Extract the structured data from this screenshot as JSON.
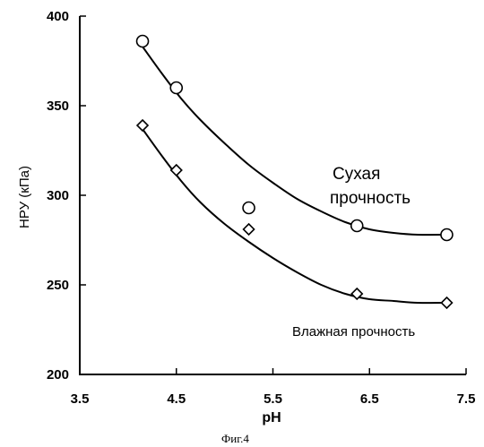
{
  "chart_data": {
    "type": "scatter",
    "title": "",
    "xlabel": "pH",
    "ylabel": "НРУ (кПа)",
    "xlim": [
      3.5,
      7.5
    ],
    "ylim": [
      200,
      400
    ],
    "xticks": [
      "3.5",
      "4.5",
      "5.5",
      "6.5",
      "7.5"
    ],
    "yticks": [
      "200",
      "250",
      "300",
      "350",
      "400"
    ],
    "grid": false,
    "series": [
      {
        "name": "Сухая прочность",
        "marker": "circle",
        "x": [
          4.15,
          4.5,
          5.25,
          6.37,
          7.3
        ],
        "y": [
          386,
          360,
          293,
          283,
          278
        ],
        "fit_x": [
          4.15,
          4.35,
          4.55,
          4.75,
          5.0,
          5.25,
          5.5,
          5.75,
          6.0,
          6.25,
          6.5,
          6.75,
          7.0,
          7.3
        ],
        "fit_y": [
          383,
          368,
          354,
          342,
          329,
          317,
          307,
          298,
          291,
          285,
          281,
          279,
          278,
          278
        ]
      },
      {
        "name": "Влажная прочность",
        "marker": "diamond",
        "x": [
          4.15,
          4.5,
          5.25,
          6.37,
          7.3
        ],
        "y": [
          339,
          314,
          281,
          245,
          240
        ],
        "fit_x": [
          4.15,
          4.35,
          4.55,
          4.75,
          5.0,
          5.25,
          5.5,
          5.75,
          6.0,
          6.25,
          6.5,
          6.75,
          7.0,
          7.3
        ],
        "fit_y": [
          337,
          322,
          308,
          296,
          284,
          274,
          265,
          257,
          250,
          245,
          242,
          241,
          240,
          240
        ]
      }
    ],
    "annotations": [
      {
        "text": "Сухая",
        "series": 0
      },
      {
        "text": "прочность",
        "series": 0
      },
      {
        "text": "Влажная прочность",
        "series": 1
      }
    ]
  },
  "caption": "Фиг.4"
}
